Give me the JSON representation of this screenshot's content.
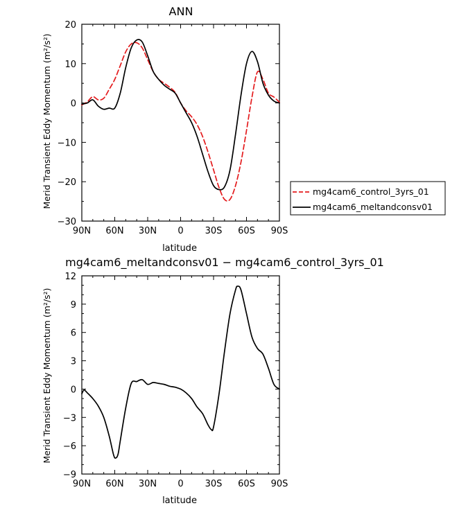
{
  "chart_data": [
    {
      "type": "line",
      "title": "ANN",
      "xlabel": "latitude",
      "ylabel": "Merid Transient Eddy Momentum (m²/s²)",
      "xlim": [
        90,
        -90
      ],
      "ylim": [
        -30,
        20
      ],
      "x_ticks": [
        90,
        60,
        30,
        0,
        -30,
        -60,
        -90
      ],
      "x_tick_labels": [
        "90N",
        "60N",
        "30N",
        "0",
        "30S",
        "60S",
        "90S"
      ],
      "y_ticks": [
        -30,
        -20,
        -10,
        0,
        10,
        20
      ],
      "y_tick_labels": [
        "−30",
        "−20",
        "−10",
        "0",
        "10",
        "20"
      ],
      "legend_position": "right",
      "series": [
        {
          "name": "mg4cam6_control_3yrs_01",
          "color": "#e41a1c",
          "dash": "dashed",
          "x": [
            90,
            85,
            80,
            75,
            70,
            65,
            60,
            55,
            50,
            45,
            40,
            35,
            30,
            25,
            20,
            15,
            10,
            5,
            0,
            -5,
            -10,
            -15,
            -20,
            -25,
            -30,
            -35,
            -40,
            -45,
            -50,
            -55,
            -60,
            -65,
            -70,
            -75,
            -80,
            -85,
            -90
          ],
          "y": [
            -0.5,
            0.3,
            1.6,
            0.8,
            1.2,
            3.5,
            6,
            9.5,
            13,
            15,
            15.3,
            14,
            11,
            8,
            6,
            5,
            4,
            2.7,
            0,
            -2,
            -3.5,
            -5.5,
            -8.5,
            -12.5,
            -17,
            -21.5,
            -24.5,
            -24.5,
            -21,
            -15,
            -7,
            1.5,
            7.9,
            6,
            2.5,
            1.5,
            0.2
          ]
        },
        {
          "name": "mg4cam6_meltandconsv01",
          "color": "#000000",
          "dash": "solid",
          "x": [
            90,
            85,
            80,
            75,
            70,
            65,
            60,
            55,
            50,
            45,
            40,
            35,
            30,
            25,
            20,
            15,
            10,
            5,
            0,
            -5,
            -10,
            -15,
            -20,
            -25,
            -30,
            -35,
            -40,
            -45,
            -50,
            -55,
            -60,
            -65,
            -70,
            -75,
            -80,
            -85,
            -90
          ],
          "y": [
            -0.3,
            0,
            0.8,
            -0.8,
            -1.6,
            -1.3,
            -1.3,
            2.5,
            9,
            14,
            16,
            15.5,
            12,
            8,
            6,
            4.5,
            3.5,
            2.5,
            0,
            -2.5,
            -5,
            -8.5,
            -13,
            -17.5,
            -21,
            -22,
            -21.3,
            -17,
            -8,
            2,
            10,
            13.1,
            10.5,
            5,
            2,
            0.5,
            0
          ]
        }
      ]
    },
    {
      "type": "line",
      "title": "mg4cam6_meltandconsv01 − mg4cam6_control_3yrs_01",
      "xlabel": "latitude",
      "ylabel": "Merid Transient Eddy Momentum (m²/s²)",
      "xlim": [
        90,
        -90
      ],
      "ylim": [
        -9,
        12
      ],
      "x_ticks": [
        90,
        60,
        30,
        0,
        -30,
        -60,
        -90
      ],
      "x_tick_labels": [
        "90N",
        "60N",
        "30N",
        "0",
        "30S",
        "60S",
        "90S"
      ],
      "y_ticks": [
        -9,
        -6,
        -3,
        0,
        3,
        6,
        9,
        12
      ],
      "y_tick_labels": [
        "−9",
        "−6",
        "−3",
        "0",
        "3",
        "6",
        "9",
        "12"
      ],
      "series": [
        {
          "color": "#000000",
          "dash": "solid",
          "x": [
            90,
            88,
            85,
            80,
            75,
            70,
            65,
            61,
            59,
            57,
            55,
            50,
            45,
            40,
            35,
            30,
            25,
            20,
            15,
            10,
            5,
            0,
            -5,
            -10,
            -15,
            -20,
            -25,
            -28,
            -30,
            -35,
            -40,
            -45,
            -50,
            -52,
            -55,
            -60,
            -65,
            -70,
            -75,
            -80,
            -85,
            -90
          ],
          "y": [
            -0.5,
            -0.1,
            -0.4,
            -1.0,
            -1.8,
            -3.0,
            -5.0,
            -7.0,
            -7.3,
            -6.9,
            -5.5,
            -2.0,
            0.6,
            0.8,
            1.0,
            0.5,
            0.7,
            0.6,
            0.5,
            0.3,
            0.2,
            0.0,
            -0.4,
            -1.0,
            -1.9,
            -2.6,
            -3.8,
            -4.3,
            -4.0,
            -0.5,
            4.0,
            8.0,
            10.5,
            10.9,
            10.5,
            8.0,
            5.5,
            4.3,
            3.7,
            2.2,
            0.5,
            0.0
          ]
        }
      ]
    }
  ]
}
